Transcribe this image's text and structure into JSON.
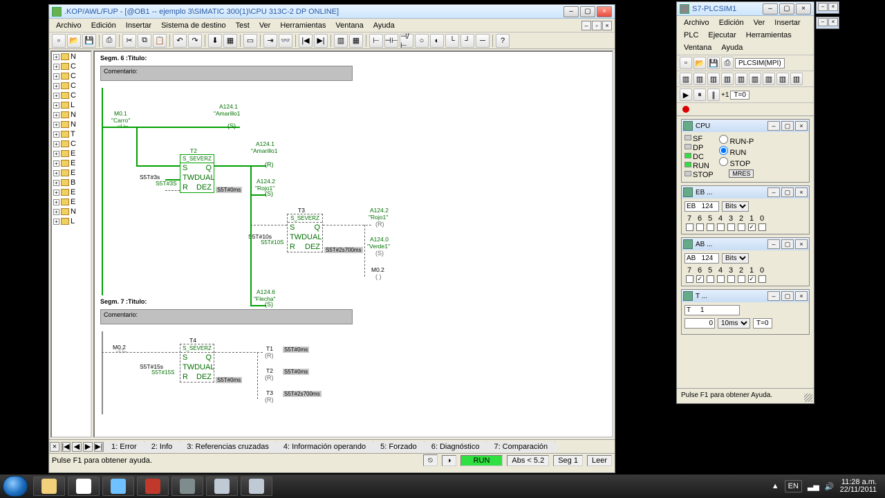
{
  "main": {
    "title": ".KOP/AWL/FUP  - [@OB1 -- ejemplo 3\\SIMATIC 300(1)\\CPU 313C-2 DP  ONLINE]",
    "menu": [
      "Archivo",
      "Edición",
      "Insertar",
      "Sistema de destino",
      "Test",
      "Ver",
      "Herramientas",
      "Ventana",
      "Ayuda"
    ],
    "tree": [
      "N",
      "C",
      "C",
      "C",
      "C",
      "L",
      "N",
      "N",
      "T",
      "C",
      "E",
      "E",
      "E",
      "B",
      "E",
      "E",
      "N",
      "L"
    ],
    "seg6_title": "Segm. 6 :Titulo:",
    "seg7_title": "Segm. 7 :Titulo:",
    "comment": "Comentario:",
    "labels": {
      "m01": "M0.1",
      "carro": "\"Carro\"",
      "a1241": "A124.1",
      "amarillo1": "\"Amarillo1",
      "t2": "T2",
      "sever": "S_SEVERZ",
      "s5t3s": "S5T#3s",
      "s5t3s2": "S5T#3S",
      "s5t0ms": "S5T#0ms",
      "a1242": "A124.2",
      "rojo1": "\"Rojo1\"",
      "t3": "T3",
      "s5t10s": "S5T#10s",
      "s5t10s2": "S5T#10S",
      "s5t2s700": "S5T#2s700ms",
      "a1240": "A124.0",
      "verde1": "\"Verde1\"",
      "m02": "M0.2",
      "a1246": "A124.6",
      "flecha": "\"Flecha\"",
      "t4": "T4",
      "s5t15s": "S5T#15s",
      "s5t15s2": "S5T#15S",
      "t1": "T1",
      "t2b": "T2",
      "t3b": "T3"
    },
    "box": {
      "S": "S",
      "Q": "Q",
      "TW": "TW",
      "DUAL": "DUAL",
      "R": "R",
      "DEZ": "DEZ"
    },
    "tabs": [
      "1: Error",
      "2: Info",
      "3: Referencias cruzadas",
      "4: Información operando",
      "5: Forzado",
      "6: Diagnóstico",
      "7: Comparación"
    ],
    "status": {
      "help": "Pulse F1 para obtener ayuda.",
      "run": "RUN",
      "abs": "Abs < 5.2",
      "seg": "Seg 1",
      "leer": "Leer"
    }
  },
  "sim": {
    "title": "S7-PLCSIM1",
    "menu": [
      "Archivo",
      "Edición",
      "Ver",
      "Insertar",
      "PLC",
      "Ejecutar",
      "Herramientas",
      "Ventana",
      "Ayuda"
    ],
    "sel": "PLCSIM(MPI)",
    "plus1": "+1",
    "t0": "T=0",
    "cpu": {
      "title": "CPU",
      "leds": [
        [
          "SF",
          "off"
        ],
        [
          "DP",
          "off"
        ],
        [
          "DC",
          "on"
        ],
        [
          "RUN",
          "on"
        ],
        [
          "STOP",
          "off"
        ]
      ],
      "runp": "RUN-P",
      "run": "RUN",
      "stop": "STOP",
      "mres": "MRES"
    },
    "eb": {
      "title": "EB ...",
      "addr": "EB   124",
      "fmt": "Bits",
      "bits": [
        "7",
        "6",
        "5",
        "4",
        "3",
        "2",
        "1",
        "0"
      ],
      "checked": [
        1
      ]
    },
    "ab": {
      "title": "AB ...",
      "addr": "AB   124",
      "fmt": "Bits",
      "bits": [
        "7",
        "6",
        "5",
        "4",
        "3",
        "2",
        "1",
        "0"
      ],
      "checked": [
        6,
        1
      ]
    },
    "t": {
      "title": "T ...",
      "addr": "T     1",
      "val": "0",
      "fmt": "10ms",
      "t0": "T=0"
    },
    "status": "Pulse F1 para obtener Ayuda."
  },
  "taskbar": {
    "lang": "EN",
    "time": "11:28 a.m.",
    "date": "22/11/2011",
    "icons": [
      {
        "name": "explorer",
        "bg": "#f3d07a"
      },
      {
        "name": "chrome",
        "bg": "#ffffff"
      },
      {
        "name": "msn",
        "bg": "#6fc2ff"
      },
      {
        "name": "app-d",
        "bg": "#c0392b"
      },
      {
        "name": "app-brush",
        "bg": "#7f8c8d"
      },
      {
        "name": "simatic",
        "bg": "#bfcad4"
      },
      {
        "name": "plcsim",
        "bg": "#bfcad4"
      }
    ]
  }
}
